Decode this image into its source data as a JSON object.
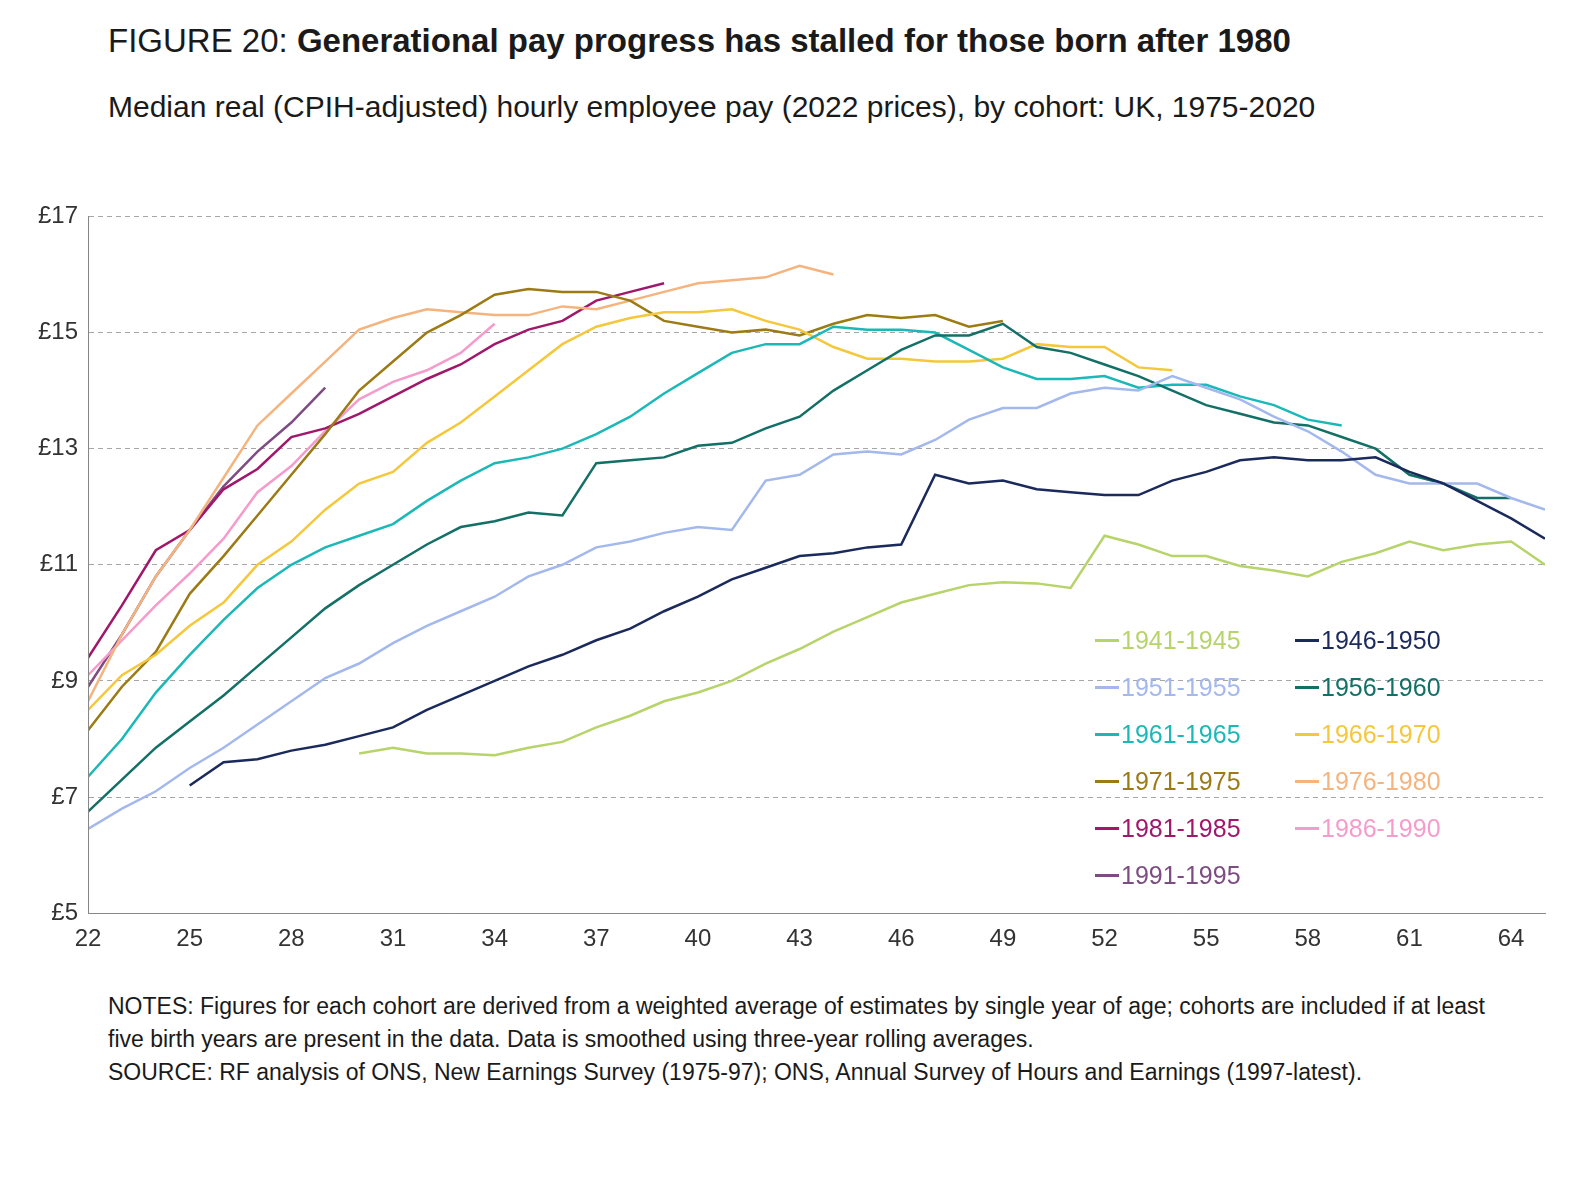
{
  "chart_data": {
    "type": "line",
    "title": "FIGURE 20: Generational pay progress has stalled for those born after 1980",
    "subtitle": "Median real (CPIH-adjusted) hourly employee pay (2022 prices), by cohort: UK, 1975-2020",
    "notes": "NOTES: Figures for each cohort are derived from a weighted average of estimates by single year of age; cohorts are included if at least five birth years are present in the data. Data is smoothed using three-year rolling averages.",
    "source": "SOURCE: RF analysis of ONS, New Earnings Survey (1975-97); ONS, Annual Survey of Hours and Earnings (1997-latest).",
    "x": [
      22,
      23,
      24,
      25,
      26,
      27,
      28,
      29,
      30,
      31,
      32,
      33,
      34,
      35,
      36,
      37,
      38,
      39,
      40,
      41,
      42,
      43,
      44,
      45,
      46,
      47,
      48,
      49,
      50,
      51,
      52,
      53,
      54,
      55,
      56,
      57,
      58,
      59,
      60,
      61,
      62,
      63,
      64,
      65
    ],
    "xlim": [
      22,
      65
    ],
    "xticks": [
      22,
      25,
      28,
      31,
      34,
      37,
      40,
      43,
      46,
      49,
      52,
      55,
      58,
      61,
      64
    ],
    "ylim": [
      5,
      17
    ],
    "yticks": [
      {
        "value": 5,
        "label": "£5"
      },
      {
        "value": 7,
        "label": "£7"
      },
      {
        "value": 9,
        "label": "£9"
      },
      {
        "value": 11,
        "label": "£11"
      },
      {
        "value": 13,
        "label": "£13"
      },
      {
        "value": 15,
        "label": "£15"
      },
      {
        "value": 17,
        "label": "£17"
      }
    ],
    "grid": true,
    "legend": "lower right",
    "series": [
      {
        "name": "1941-1945",
        "color": "#b7d46a",
        "values": [
          null,
          null,
          null,
          null,
          null,
          null,
          null,
          null,
          7.75,
          7.85,
          7.75,
          7.75,
          7.72,
          7.85,
          7.95,
          8.2,
          8.4,
          8.65,
          8.8,
          9.0,
          9.3,
          9.55,
          9.85,
          10.1,
          10.35,
          10.5,
          10.65,
          10.7,
          10.68,
          10.6,
          11.5,
          11.35,
          11.15,
          11.15,
          10.98,
          10.9,
          10.8,
          11.05,
          11.2,
          11.4,
          11.25,
          11.35,
          11.4,
          11.0
        ]
      },
      {
        "name": "1946-1950",
        "color": "#1b2a5c",
        "values": [
          null,
          null,
          null,
          7.2,
          7.6,
          7.65,
          7.8,
          7.9,
          8.05,
          8.2,
          8.5,
          8.75,
          9.0,
          9.25,
          9.45,
          9.7,
          9.9,
          10.2,
          10.45,
          10.75,
          10.95,
          11.15,
          11.2,
          11.3,
          11.35,
          12.55,
          12.4,
          12.45,
          12.3,
          12.25,
          12.2,
          12.2,
          12.45,
          12.6,
          12.8,
          12.85,
          12.8,
          12.8,
          12.85,
          12.6,
          12.4,
          12.1,
          11.8,
          11.45
        ]
      },
      {
        "name": "1951-1955",
        "color": "#a3b8ec",
        "values": [
          6.45,
          6.8,
          7.1,
          7.5,
          7.85,
          8.25,
          8.65,
          9.05,
          9.3,
          9.65,
          9.95,
          10.2,
          10.45,
          10.8,
          11.0,
          11.3,
          11.4,
          11.55,
          11.65,
          11.6,
          12.45,
          12.55,
          12.9,
          12.95,
          12.9,
          13.15,
          13.5,
          13.7,
          13.7,
          13.95,
          14.05,
          14.0,
          14.25,
          14.05,
          13.85,
          13.55,
          13.3,
          12.95,
          12.55,
          12.4,
          12.4,
          12.4,
          12.15,
          11.95
        ]
      },
      {
        "name": "1956-1960",
        "color": "#127066",
        "values": [
          6.75,
          7.3,
          7.85,
          8.3,
          8.75,
          9.25,
          9.75,
          10.25,
          10.65,
          11.0,
          11.35,
          11.65,
          11.75,
          11.9,
          11.85,
          12.75,
          12.8,
          12.85,
          13.05,
          13.1,
          13.35,
          13.55,
          14.0,
          14.35,
          14.7,
          14.95,
          14.95,
          15.15,
          14.75,
          14.65,
          14.45,
          14.25,
          14.0,
          13.75,
          13.6,
          13.45,
          13.4,
          13.2,
          13.0,
          12.55,
          12.4,
          12.15,
          12.15,
          null
        ]
      },
      {
        "name": "1961-1965",
        "color": "#1bb8b8",
        "values": [
          7.35,
          8.0,
          8.8,
          9.45,
          10.05,
          10.6,
          11.0,
          11.3,
          11.5,
          11.7,
          12.1,
          12.45,
          12.75,
          12.85,
          13.0,
          13.25,
          13.55,
          13.95,
          14.3,
          14.65,
          14.8,
          14.8,
          15.1,
          15.05,
          15.05,
          15.0,
          14.7,
          14.4,
          14.2,
          14.2,
          14.25,
          14.05,
          14.1,
          14.1,
          13.9,
          13.75,
          13.5,
          13.4,
          null,
          null,
          null,
          null,
          null,
          null
        ]
      },
      {
        "name": "1966-1970",
        "color": "#f5c73a",
        "values": [
          8.5,
          9.1,
          9.45,
          9.95,
          10.35,
          11.0,
          11.4,
          11.95,
          12.4,
          12.6,
          13.1,
          13.45,
          13.9,
          14.35,
          14.8,
          15.1,
          15.25,
          15.35,
          15.35,
          15.4,
          15.2,
          15.05,
          14.75,
          14.55,
          14.55,
          14.5,
          14.5,
          14.55,
          14.8,
          14.75,
          14.75,
          14.4,
          14.35,
          null,
          null,
          null,
          null,
          null,
          null,
          null,
          null,
          null,
          null,
          null
        ]
      },
      {
        "name": "1971-1975",
        "color": "#9c7a14",
        "values": [
          8.15,
          8.9,
          9.5,
          10.5,
          11.15,
          11.85,
          12.55,
          13.25,
          14.0,
          14.5,
          15.0,
          15.3,
          15.65,
          15.75,
          15.7,
          15.7,
          15.55,
          15.2,
          15.1,
          15.0,
          15.05,
          14.95,
          15.15,
          15.3,
          15.25,
          15.3,
          15.1,
          15.2,
          null,
          null,
          null,
          null,
          null,
          null,
          null,
          null,
          null,
          null,
          null,
          null,
          null,
          null,
          null,
          null
        ]
      },
      {
        "name": "1976-1980",
        "color": "#f5b47e",
        "values": [
          8.65,
          9.8,
          10.8,
          11.6,
          12.5,
          13.4,
          13.95,
          14.5,
          15.05,
          15.25,
          15.4,
          15.35,
          15.3,
          15.3,
          15.45,
          15.4,
          15.55,
          15.7,
          15.85,
          15.9,
          15.95,
          16.15,
          16.0,
          null,
          null,
          null,
          null,
          null,
          null,
          null,
          null,
          null,
          null,
          null,
          null,
          null,
          null,
          null,
          null,
          null,
          null,
          null,
          null,
          null
        ]
      },
      {
        "name": "1981-1985",
        "color": "#a0176b",
        "values": [
          9.4,
          10.3,
          11.25,
          11.6,
          12.3,
          12.65,
          13.2,
          13.35,
          13.6,
          13.9,
          14.2,
          14.45,
          14.8,
          15.05,
          15.2,
          15.55,
          15.7,
          15.85,
          null,
          null,
          null,
          null,
          null,
          null,
          null,
          null,
          null,
          null,
          null,
          null,
          null,
          null,
          null,
          null,
          null,
          null,
          null,
          null,
          null,
          null,
          null,
          null,
          null,
          null
        ]
      },
      {
        "name": "1986-1990",
        "color": "#f59ccc",
        "values": [
          9.1,
          9.7,
          10.3,
          10.85,
          11.45,
          12.25,
          12.7,
          13.3,
          13.85,
          14.15,
          14.35,
          14.65,
          15.15,
          null,
          null,
          null,
          null,
          null,
          null,
          null,
          null,
          null,
          null,
          null,
          null,
          null,
          null,
          null,
          null,
          null,
          null,
          null,
          null,
          null,
          null,
          null,
          null,
          null,
          null,
          null,
          null,
          null,
          null,
          null
        ]
      },
      {
        "name": "1991-1995",
        "color": "#7d4c82",
        "values": [
          8.9,
          9.8,
          10.8,
          11.6,
          12.35,
          12.95,
          13.45,
          14.05,
          null,
          null,
          null,
          null,
          null,
          null,
          null,
          null,
          null,
          null,
          null,
          null,
          null,
          null,
          null,
          null,
          null,
          null,
          null,
          null,
          null,
          null,
          null,
          null,
          null,
          null,
          null,
          null,
          null,
          null,
          null,
          null,
          null,
          null,
          null,
          null
        ]
      }
    ]
  }
}
